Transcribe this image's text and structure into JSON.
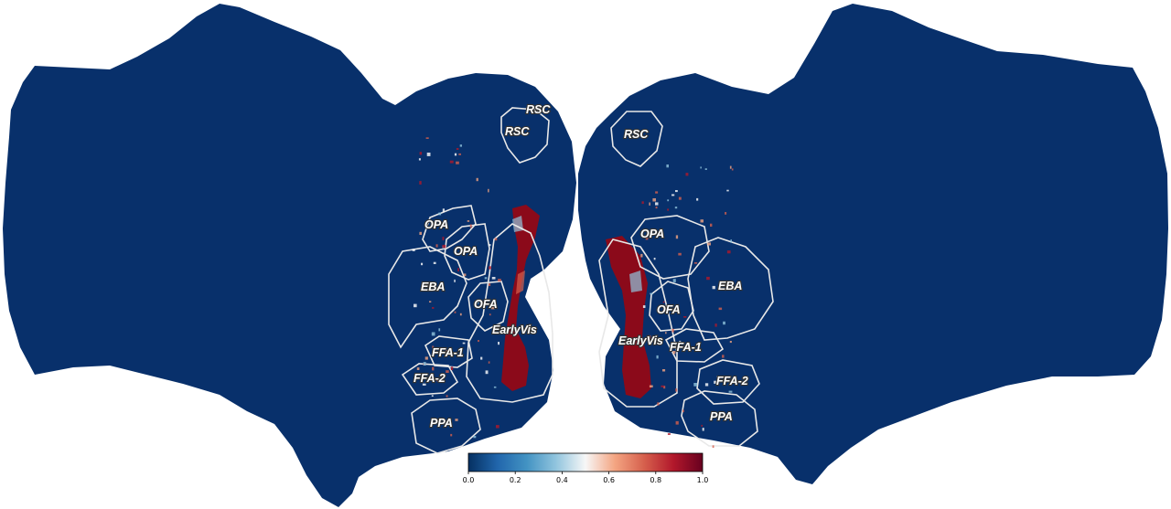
{
  "map": {
    "background_color": "#08306b",
    "hemispheres": [
      "left",
      "right"
    ]
  },
  "roi_labels": {
    "left": [
      "RSC",
      "RSC",
      "OPA",
      "OPA",
      "EBA",
      "OFA",
      "EarlyVis",
      "FFA-1",
      "FFA-2",
      "PPA"
    ],
    "right": [
      "RSC",
      "OPA",
      "EBA",
      "OFA",
      "EarlyVis",
      "FFA-1",
      "FFA-2",
      "PPA"
    ]
  },
  "colorbar": {
    "colormap": "RdBu_r",
    "colors": [
      "#053061",
      "#2166ac",
      "#4393c3",
      "#92c5de",
      "#f7f7f7",
      "#f4a582",
      "#d6604d",
      "#b2182b",
      "#67001f"
    ],
    "min": 0.0,
    "max": 1.0,
    "ticks": [
      "0.0",
      "0.2",
      "0.4",
      "0.6",
      "0.8",
      "1.0"
    ]
  }
}
